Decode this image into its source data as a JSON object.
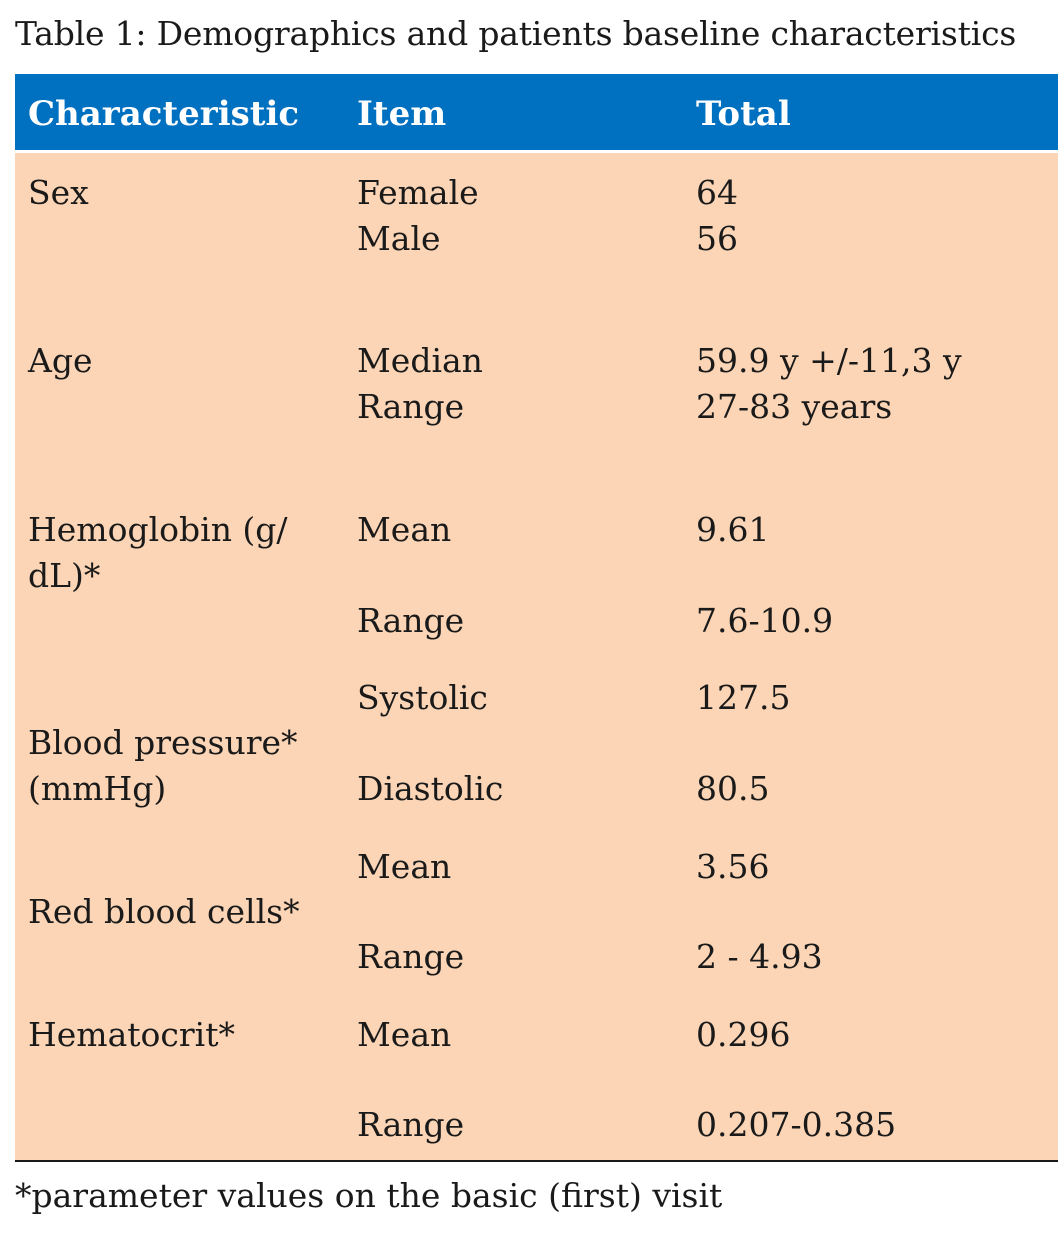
{
  "caption": "Table 1: Demographics and patients baseline characteristics",
  "header": {
    "characteristic": "Characteristic",
    "item": "Item",
    "total": "Total"
  },
  "rows": [
    {
      "characteristic": "Sex",
      "item": "Female",
      "total": "64"
    },
    {
      "characteristic": "",
      "item": "Male",
      "total": "56"
    },
    {
      "characteristic": "Age",
      "item": "Median",
      "total": "59.9 y +/-11,3 y"
    },
    {
      "characteristic": "",
      "item": "Range",
      "total": "27-83 years"
    },
    {
      "characteristic_line1": "Hemoglobin (g/",
      "characteristic_line2": "dL)*",
      "item": "Mean",
      "total": "9.61"
    },
    {
      "characteristic": "",
      "item": "Range",
      "total": "7.6-10.9"
    },
    {
      "characteristic_line1": "Blood pressure*",
      "characteristic_line2": "(mmHg)",
      "item": "Systolic",
      "total": "127.5"
    },
    {
      "characteristic": "",
      "item": "Diastolic",
      "total": "80.5"
    },
    {
      "characteristic": "Red blood cells*",
      "item": "Mean",
      "total": "3.56"
    },
    {
      "characteristic": "",
      "item": "Range",
      "total": "2 - 4.93"
    },
    {
      "characteristic": "Hematocrit*",
      "item": "Mean",
      "total": "0.296"
    },
    {
      "characteristic": "",
      "item": "Range",
      "total": "0.207-0.385"
    }
  ],
  "footnote": "*parameter values on the basic (first) visit",
  "colors": {
    "header_bg": "#0070c0",
    "body_bg": "#fbd5b5",
    "header_text": "#ffffff"
  }
}
